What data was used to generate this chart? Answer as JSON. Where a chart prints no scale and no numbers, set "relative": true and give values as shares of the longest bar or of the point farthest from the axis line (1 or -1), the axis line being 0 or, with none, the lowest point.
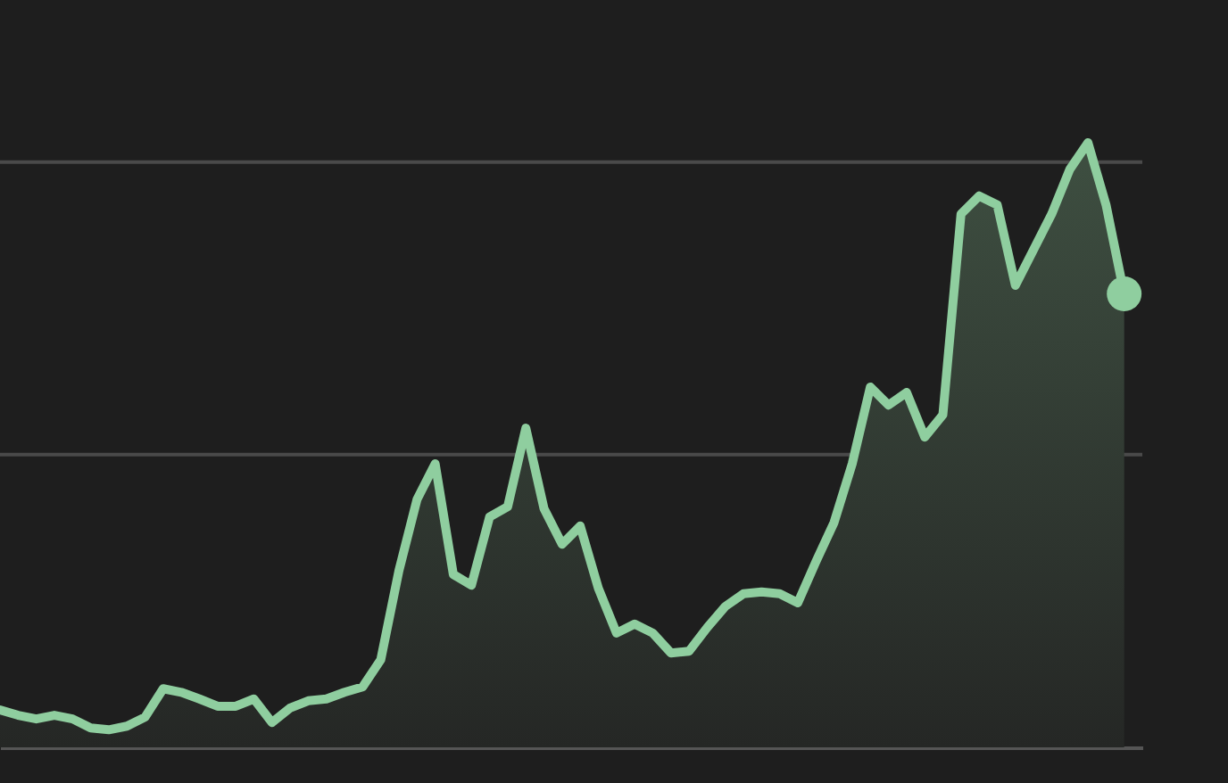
{
  "chart_data": {
    "type": "area",
    "relative": true,
    "categories": [
      null,
      null,
      null,
      null,
      null,
      null,
      null,
      null,
      null,
      null,
      null,
      null,
      null,
      null,
      null,
      null,
      null,
      null,
      null,
      null,
      null,
      null,
      null,
      null,
      null,
      null,
      null,
      null,
      null,
      null,
      null,
      null,
      null,
      null,
      null,
      null,
      null,
      null,
      null,
      null,
      null,
      null,
      null,
      null,
      null,
      null,
      null,
      null,
      null,
      null,
      null,
      null,
      null,
      null,
      null,
      null,
      null,
      null,
      null,
      null,
      null,
      null,
      null
    ],
    "series": [
      {
        "color": "#8fce9f",
        "values": [
          0.062,
          0.053,
          0.047,
          0.053,
          0.047,
          0.032,
          0.029,
          0.035,
          0.05,
          0.097,
          0.091,
          0.08,
          0.068,
          0.068,
          0.08,
          0.041,
          0.065,
          0.077,
          0.08,
          0.091,
          0.1,
          0.145,
          0.292,
          0.41,
          0.469,
          0.286,
          0.268,
          0.381,
          0.398,
          0.528,
          0.395,
          0.336,
          0.366,
          0.263,
          0.189,
          0.204,
          0.189,
          0.156,
          0.159,
          0.198,
          0.233,
          0.254,
          0.257,
          0.254,
          0.239,
          0.307,
          0.372,
          0.469,
          0.596,
          0.566,
          0.587,
          0.513,
          0.55,
          0.882,
          0.912,
          0.897,
          0.764,
          0.823,
          0.882,
          0.956,
          1,
          0.897,
          0.75
        ]
      }
    ],
    "ref_lines": [
      {
        "axis": "y",
        "value": 0.484,
        "color": "#4a4a4a"
      },
      {
        "axis": "y",
        "value": 0.968,
        "color": "#4a4a4a"
      }
    ],
    "tick_labels": false
  }
}
